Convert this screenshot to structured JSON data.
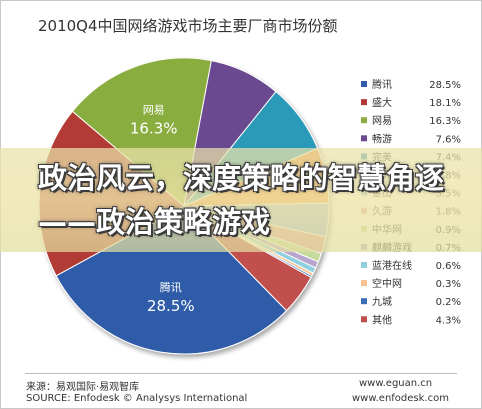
{
  "chart_data": {
    "type": "pie",
    "title": "2010Q4中国网络游戏市场主要厂商市场份额",
    "slices": [
      {
        "label": "腾讯",
        "value": 28.5,
        "display": "28.5%",
        "color": "#2f5ba8"
      },
      {
        "label": "盛大",
        "value": 18.1,
        "display": "18.1%",
        "color": "#b23a36"
      },
      {
        "label": "网易",
        "value": 16.3,
        "display": "16.3%",
        "color": "#8aad3f"
      },
      {
        "label": "畅游",
        "value": 7.6,
        "display": "7.6%",
        "color": "#6a4a91"
      },
      {
        "label": "完美",
        "value": 7.4,
        "display": "7.4%",
        "color": "#2c9ab8"
      },
      {
        "label": "巨人",
        "value": 5.8,
        "display": "5.8%",
        "color": "#f0903a"
      },
      {
        "label": "金山",
        "value": 3.5,
        "display": "3.5%",
        "color": "#9ab7de"
      },
      {
        "label": "久游",
        "value": 1.8,
        "display": "1.8%",
        "color": "#e39b97"
      },
      {
        "label": "中华网",
        "value": 0.9,
        "display": "0.9%",
        "color": "#c6da9d"
      },
      {
        "label": "麒麟游戏",
        "value": 0.7,
        "display": "0.7%",
        "color": "#b8a6cf"
      },
      {
        "label": "蓝港在线",
        "value": 0.6,
        "display": "0.6%",
        "color": "#8ecfe0"
      },
      {
        "label": "空中网",
        "value": 0.3,
        "display": "0.3%",
        "color": "#f6c08f"
      },
      {
        "label": "九城",
        "value": 0.2,
        "display": "0.2%",
        "color": "#3d6db3"
      },
      {
        "label": "其他",
        "value": 4.3,
        "display": "4.3%",
        "color": "#c0504d"
      }
    ],
    "slice_labels": [
      {
        "name": "网易",
        "value": "16.3%"
      },
      {
        "name": "腾讯",
        "value": "28.5%"
      }
    ],
    "legend_position": "right"
  },
  "banner": {
    "text": "政治风云，深度策略的智慧角逐——政治策略游戏"
  },
  "footer": {
    "source_cn": "来源：易观国际·易观智库",
    "source_en": "SOURCE: Enfodesk © Analysys International",
    "site1": "www.eguan.cn",
    "site2": "www.enfodesk.com"
  }
}
